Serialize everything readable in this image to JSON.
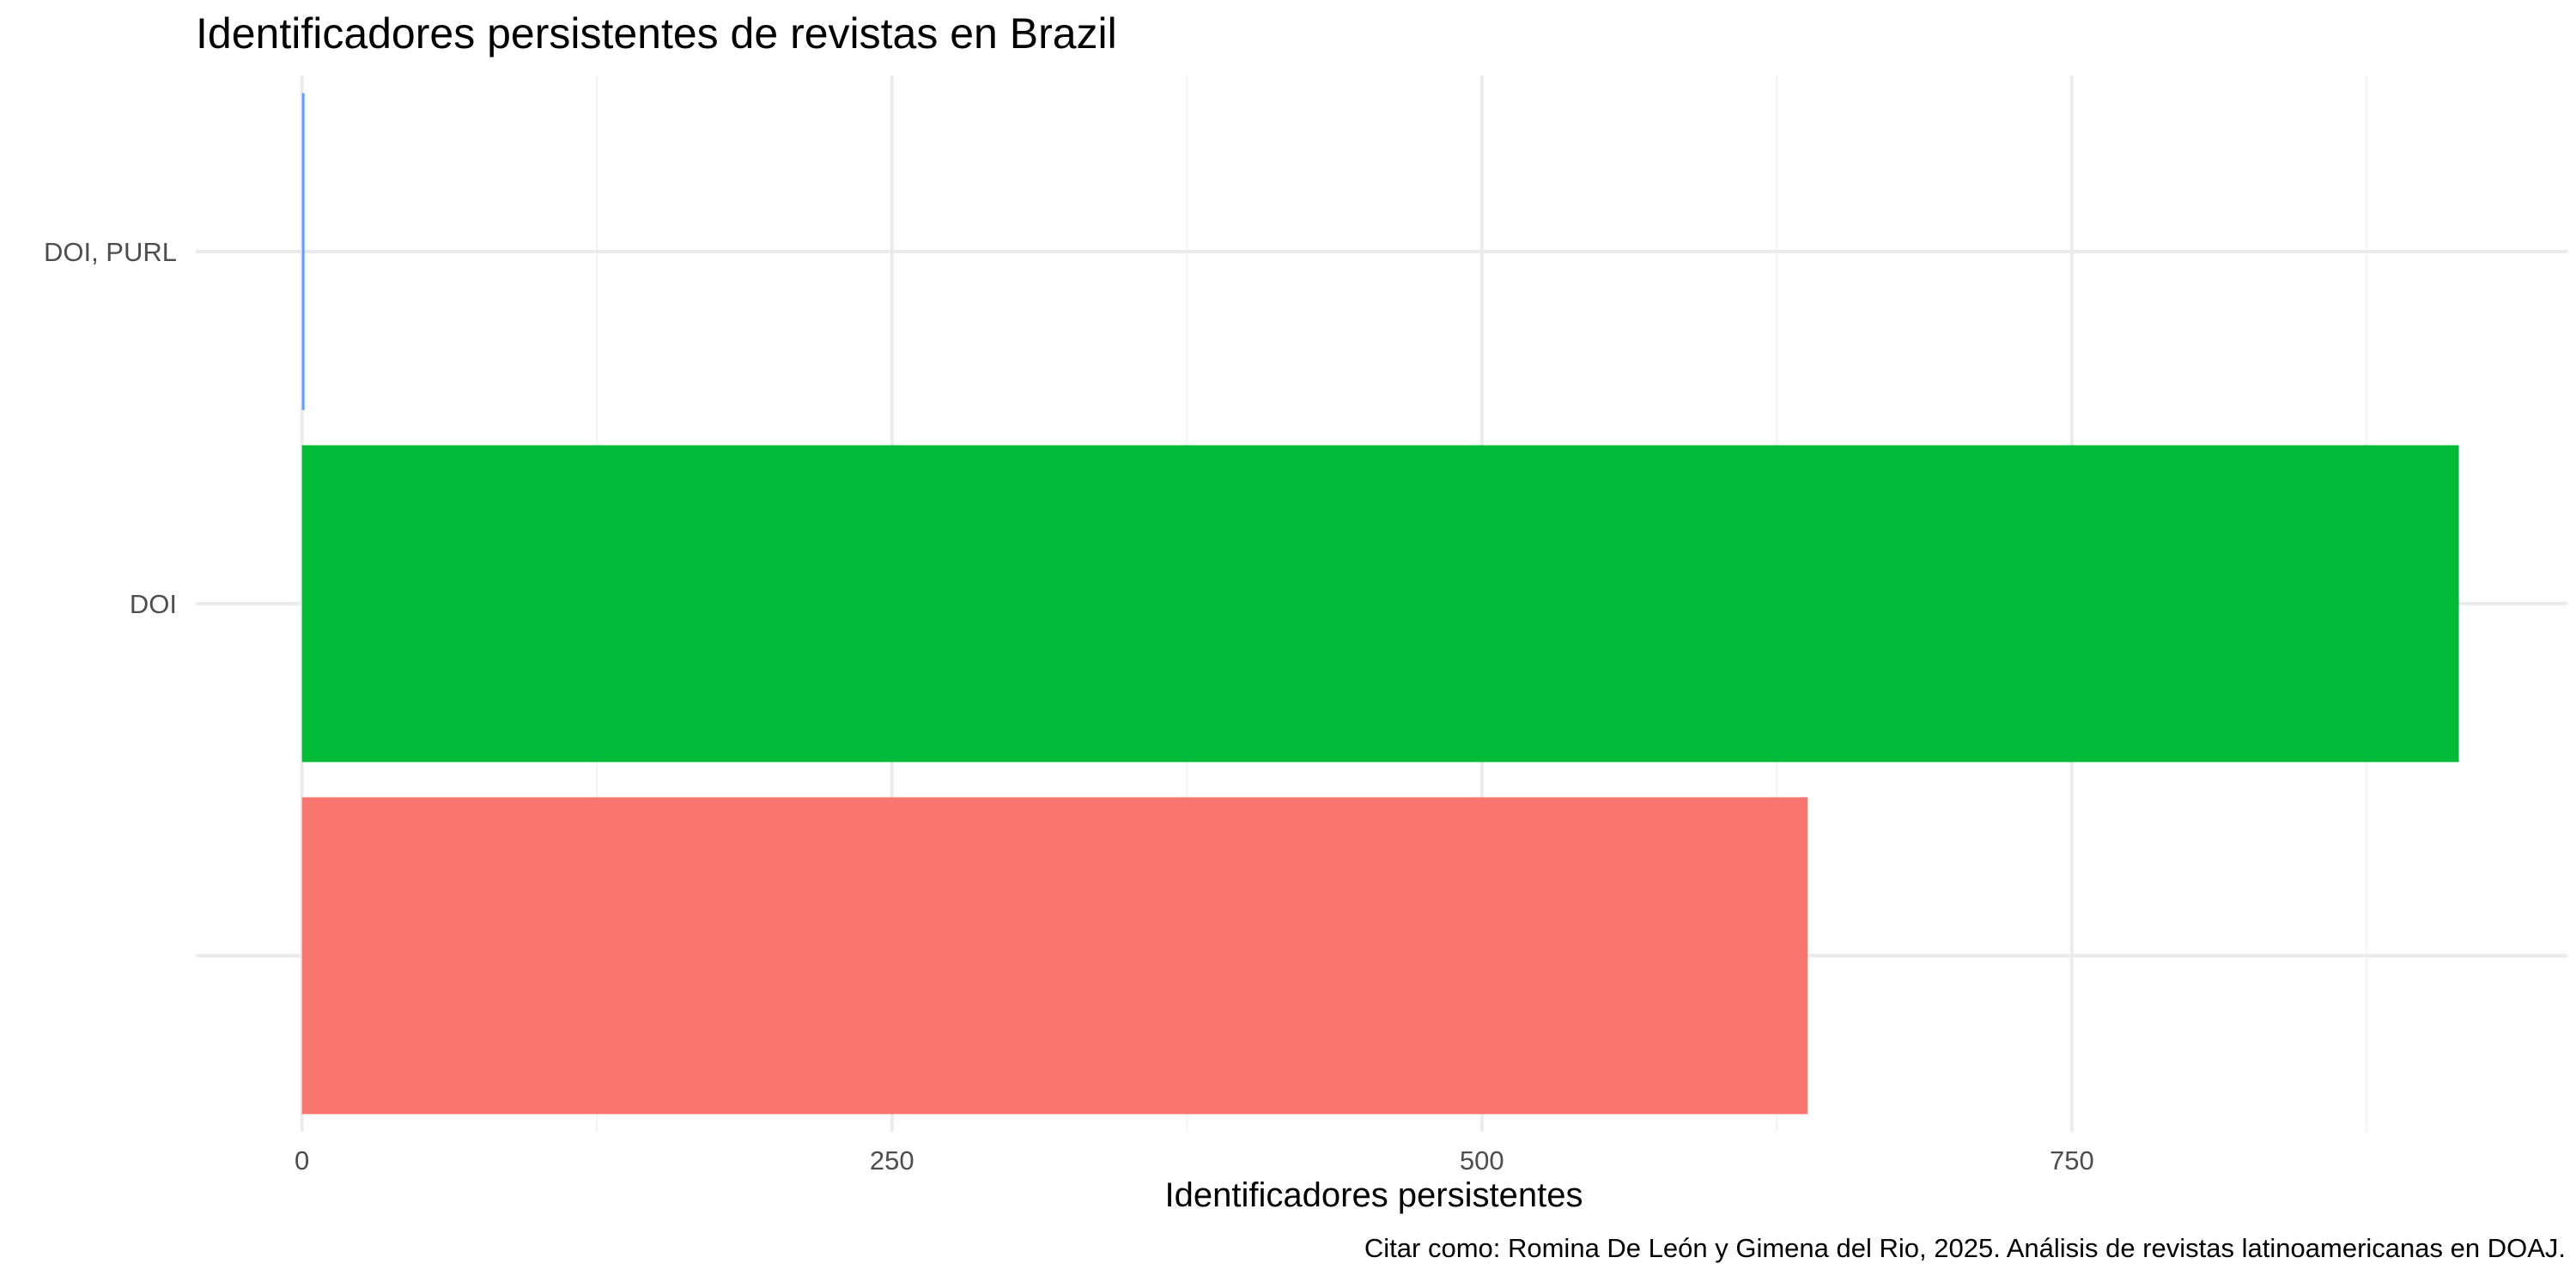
{
  "chart_data": {
    "type": "bar",
    "orientation": "horizontal",
    "title": "Identificadores persistentes de revistas en Brazil",
    "xlabel": "Identificadores persistentes",
    "ylabel": "",
    "caption": "Citar como: Romina De León y Gimena del Rio, 2025. Análisis de revistas latinoamericanas en DOAJ.",
    "categories": [
      "",
      "DOI",
      "DOI, PURL"
    ],
    "values": [
      638,
      914,
      1
    ],
    "colors": [
      "#F8766D",
      "#00BA38",
      "#619CFF"
    ],
    "xlim": [
      -45,
      960
    ],
    "x_ticks": [
      0,
      250,
      500,
      750
    ],
    "grid": true,
    "legend": "none"
  }
}
